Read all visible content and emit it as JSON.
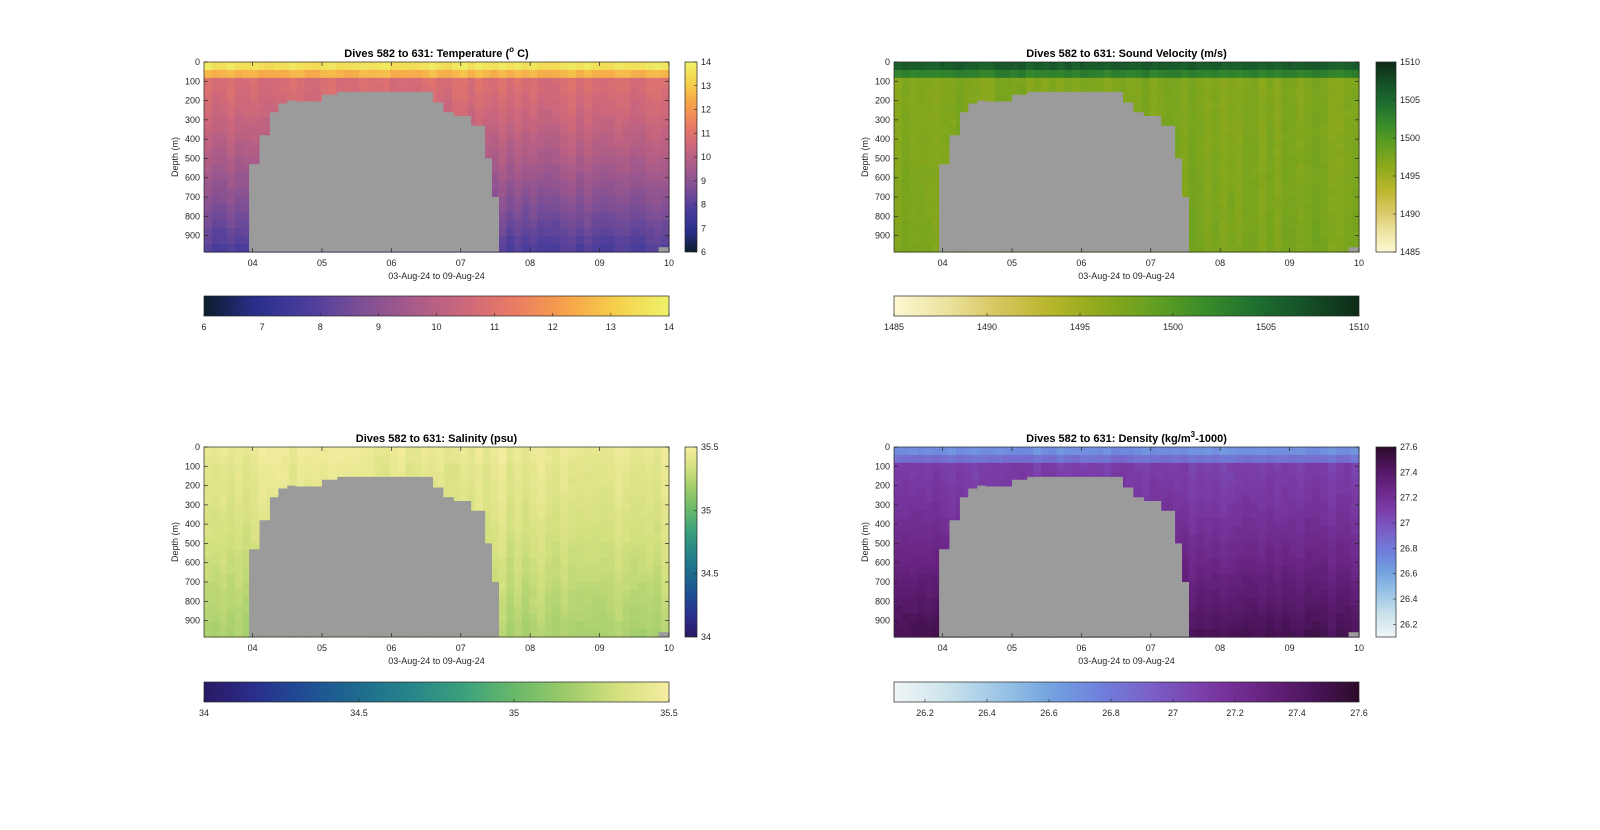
{
  "figure": {
    "background": "#ffffff",
    "seafloor_color": "#9b9b9b",
    "axis_color": "#262626"
  },
  "chart_data": [
    {
      "type": "heatmap",
      "variable": "temperature",
      "title": "Dives 582 to 631: Temperature (° C)",
      "title_parts": [
        "Dives 582 to 631: Temperature (",
        "o",
        " C)"
      ],
      "xlabel": "03-Aug-24 to 09-Aug-24",
      "ylabel": "Depth (m)",
      "xlim": [
        3.3,
        10.0
      ],
      "ylim": [
        0,
        985
      ],
      "y_reversed": true,
      "x_ticks": [
        4,
        5,
        6,
        7,
        8,
        9,
        10
      ],
      "x_tick_labels": [
        "04",
        "05",
        "06",
        "07",
        "08",
        "09",
        "10"
      ],
      "y_ticks": [
        0,
        100,
        200,
        300,
        400,
        500,
        600,
        700,
        800,
        900
      ],
      "y_tick_labels": [
        "0",
        "100",
        "200",
        "300",
        "400",
        "500",
        "600",
        "700",
        "800",
        "900"
      ],
      "clim": [
        6,
        14
      ],
      "colorbar_ticks": [
        6,
        7,
        8,
        9,
        10,
        11,
        12,
        13,
        14
      ],
      "colorbar_ticks_vertical": [
        6,
        7,
        8,
        9,
        10,
        11,
        12,
        13,
        14
      ],
      "colormap": [
        "#0b1c2c",
        "#2a2f8c",
        "#4a3d9c",
        "#7b4e96",
        "#a65a8a",
        "#cc677c",
        "#ea7b64",
        "#f7a14a",
        "#f5d14c",
        "#eef26a"
      ],
      "profile": {
        "surface": 13.6,
        "mixed_layer_depth": 40,
        "thermocline_bottom": 100,
        "upper": 10.8,
        "deep": 7.8
      },
      "colorbar_orientation": "horizontal + vertical"
    },
    {
      "type": "heatmap",
      "variable": "sound_velocity",
      "title": "Dives 582 to 631: Sound Velocity (m/s)",
      "xlabel": "03-Aug-24 to 09-Aug-24",
      "ylabel": "Depth (m)",
      "xlim": [
        3.3,
        10.0
      ],
      "ylim": [
        0,
        985
      ],
      "y_reversed": true,
      "x_ticks": [
        4,
        5,
        6,
        7,
        8,
        9,
        10
      ],
      "x_tick_labels": [
        "04",
        "05",
        "06",
        "07",
        "08",
        "09",
        "10"
      ],
      "y_ticks": [
        0,
        100,
        200,
        300,
        400,
        500,
        600,
        700,
        800,
        900
      ],
      "y_tick_labels": [
        "0",
        "100",
        "200",
        "300",
        "400",
        "500",
        "600",
        "700",
        "800",
        "900"
      ],
      "clim": [
        1485,
        1510
      ],
      "colorbar_ticks": [
        1485,
        1490,
        1495,
        1500,
        1505,
        1510
      ],
      "colorbar_ticks_vertical": [
        1485,
        1490,
        1495,
        1500,
        1505,
        1510
      ],
      "colormap": [
        "#fdf8d2",
        "#ece3a0",
        "#d7c660",
        "#b8b62c",
        "#8fa91c",
        "#64a020",
        "#3a8c2a",
        "#1f6f30",
        "#154f27",
        "#0d2a17"
      ],
      "profile": {
        "surface": 1506,
        "mixed_layer_depth": 40,
        "thermocline_bottom": 100,
        "upper": 1497,
        "deep": 1497.5
      }
    },
    {
      "type": "heatmap",
      "variable": "salinity",
      "title": "Dives 582 to 631: Salinity (psu)",
      "xlabel": "03-Aug-24 to 09-Aug-24",
      "ylabel": "Depth (m)",
      "xlim": [
        3.3,
        10.0
      ],
      "ylim": [
        0,
        985
      ],
      "y_reversed": true,
      "x_ticks": [
        4,
        5,
        6,
        7,
        8,
        9,
        10
      ],
      "x_tick_labels": [
        "04",
        "05",
        "06",
        "07",
        "08",
        "09",
        "10"
      ],
      "y_ticks": [
        0,
        100,
        200,
        300,
        400,
        500,
        600,
        700,
        800,
        900
      ],
      "y_tick_labels": [
        "0",
        "100",
        "200",
        "300",
        "400",
        "500",
        "600",
        "700",
        "800",
        "900"
      ],
      "clim": [
        34,
        35.5
      ],
      "colorbar_ticks": [
        34,
        34.5,
        35,
        35.5
      ],
      "colorbar_ticks_vertical": [
        34,
        34.5,
        35,
        35.5
      ],
      "colormap": [
        "#2a1864",
        "#2a2f8c",
        "#1f4f95",
        "#1d6b8e",
        "#28858a",
        "#3aa07c",
        "#69b86a",
        "#9ccb6a",
        "#d3e07e",
        "#f6eda0"
      ],
      "profile": {
        "surface": 35.45,
        "mixed_layer_depth": 40,
        "thermocline_bottom": 100,
        "upper": 35.42,
        "deep": 35.22
      }
    },
    {
      "type": "heatmap",
      "variable": "density",
      "title": "Dives 582 to 631: Density (kg/m³-1000)",
      "title_parts": [
        "Dives 582 to 631: Density (kg/m",
        "3",
        "-1000)"
      ],
      "xlabel": "03-Aug-24 to 09-Aug-24",
      "ylabel": "Depth (m)",
      "xlim": [
        3.3,
        10.0
      ],
      "ylim": [
        0,
        985
      ],
      "y_reversed": true,
      "x_ticks": [
        4,
        5,
        6,
        7,
        8,
        9,
        10
      ],
      "x_tick_labels": [
        "04",
        "05",
        "06",
        "07",
        "08",
        "09",
        "10"
      ],
      "y_ticks": [
        0,
        100,
        200,
        300,
        400,
        500,
        600,
        700,
        800,
        900
      ],
      "y_tick_labels": [
        "0",
        "100",
        "200",
        "300",
        "400",
        "500",
        "600",
        "700",
        "800",
        "900"
      ],
      "clim": [
        26.1,
        27.6
      ],
      "colorbar_ticks": [
        26.2,
        26.4,
        26.6,
        26.8,
        27,
        27.2,
        27.4,
        27.6
      ],
      "colorbar_ticks_vertical": [
        26.2,
        26.4,
        26.6,
        26.8,
        27,
        27.2,
        27.4,
        27.6
      ],
      "colormap": [
        "#f0f6f6",
        "#cde4ec",
        "#9ec7e6",
        "#74a4e0",
        "#6f80dc",
        "#7a5fc7",
        "#7b3da8",
        "#6b2686",
        "#4f1660",
        "#2c0a2a"
      ],
      "profile": {
        "surface": 26.7,
        "mixed_layer_depth": 40,
        "thermocline_bottom": 100,
        "upper": 27.1,
        "deep": 27.48
      }
    }
  ],
  "seafloor_outline": [
    {
      "x": 3.3,
      "depth": null
    },
    {
      "x": 3.95,
      "depth": 800
    },
    {
      "x": 4.1,
      "depth": 530
    },
    {
      "x": 4.25,
      "depth": 380
    },
    {
      "x": 4.37,
      "depth": 260
    },
    {
      "x": 4.5,
      "depth": 215
    },
    {
      "x": 4.62,
      "depth": 200
    },
    {
      "x": 5.0,
      "depth": 205
    },
    {
      "x": 5.22,
      "depth": 170
    },
    {
      "x": 5.42,
      "depth": 155
    },
    {
      "x": 6.6,
      "depth": 155
    },
    {
      "x": 6.75,
      "depth": 210
    },
    {
      "x": 6.9,
      "depth": 260
    },
    {
      "x": 7.15,
      "depth": 280
    },
    {
      "x": 7.35,
      "depth": 330
    },
    {
      "x": 7.45,
      "depth": 500
    },
    {
      "x": 7.55,
      "depth": 700
    },
    {
      "x": 7.7,
      "depth": 985
    }
  ],
  "seafloor_outline_right": [
    {
      "x": 9.85,
      "depth": 960
    }
  ]
}
